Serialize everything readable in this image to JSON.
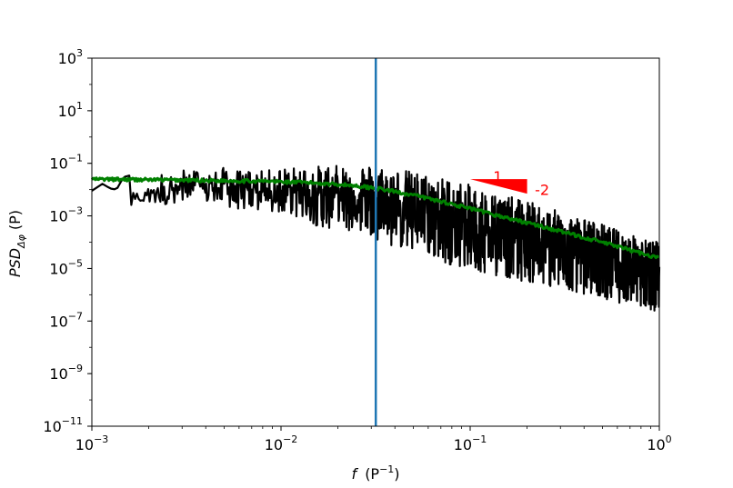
{
  "chart_data": {
    "type": "line",
    "xscale": "log",
    "yscale": "log",
    "xlim": [
      0.001,
      1
    ],
    "ylim": [
      1e-11,
      1000
    ],
    "grid": false,
    "xlabel": {
      "main": "f",
      "unit": "(P",
      "sup": "−1",
      "close": ")"
    },
    "ylabel": {
      "main": "PSD",
      "sub": "Δφ",
      "unit": "(P)"
    },
    "xticks": [
      {
        "value": 0.001,
        "base": "10",
        "exp": "−3"
      },
      {
        "value": 0.01,
        "base": "10",
        "exp": "−2"
      },
      {
        "value": 0.1,
        "base": "10",
        "exp": "−1"
      },
      {
        "value": 1,
        "base": "10",
        "exp": "0"
      }
    ],
    "yticks": [
      {
        "value": 1e-11,
        "base": "10",
        "exp": "−11"
      },
      {
        "value": 1e-09,
        "base": "10",
        "exp": "−9"
      },
      {
        "value": 1e-07,
        "base": "10",
        "exp": "−7"
      },
      {
        "value": 1e-05,
        "base": "10",
        "exp": "−5"
      },
      {
        "value": 0.001,
        "base": "10",
        "exp": "−3"
      },
      {
        "value": 0.1,
        "base": "10",
        "exp": "−1"
      },
      {
        "value": 10,
        "base": "10",
        "exp": "1"
      },
      {
        "value": 1000,
        "base": "10",
        "exp": "3"
      }
    ],
    "series": [
      {
        "color": "#000000",
        "kind": "noisy-spectrum",
        "x": [
          0.001,
          0.00107,
          0.00115,
          0.00125,
          0.00135,
          0.00147,
          0.0016,
          0.00172,
          0.00185,
          0.002,
          0.0022,
          0.0024,
          0.0026,
          0.0028,
          0.003,
          0.0033,
          0.0036,
          0.004,
          0.0045,
          0.005,
          0.0056,
          0.0063,
          0.007,
          0.008,
          0.009,
          0.01,
          0.012,
          0.014,
          0.016,
          0.018,
          0.02,
          0.023,
          0.026,
          0.03,
          0.035,
          0.04,
          0.05,
          0.06,
          0.07,
          0.08,
          0.1,
          0.12,
          0.15,
          0.2,
          0.25,
          0.3,
          0.4,
          0.5,
          0.6,
          0.7,
          0.8,
          0.9,
          1.0
        ],
        "y_upper": [
          0.009,
          0.02,
          0.016,
          0.011,
          0.01,
          0.03,
          0.035,
          0.008,
          0.004,
          0.025,
          0.015,
          0.07,
          0.03,
          0.05,
          0.06,
          0.05,
          0.06,
          0.06,
          0.055,
          0.07,
          0.06,
          0.05,
          0.06,
          0.05,
          0.06,
          0.07,
          0.07,
          0.08,
          0.08,
          0.09,
          0.08,
          0.09,
          0.1,
          0.09,
          0.08,
          0.07,
          0.05,
          0.04,
          0.03,
          0.025,
          0.015,
          0.01,
          0.006,
          0.004,
          0.002,
          0.0015,
          0.0008,
          0.0005,
          0.0003,
          0.0002,
          0.00015,
          0.00012,
          0.0001
        ],
        "y_lower": [
          0.009,
          0.02,
          0.016,
          0.011,
          0.01,
          0.002,
          0.0006,
          0.002,
          0.004,
          0.001,
          0.002,
          0.0008,
          0.002,
          0.0015,
          0.001,
          0.0012,
          0.001,
          0.0015,
          0.0008,
          0.001,
          0.0008,
          0.0007,
          0.0006,
          0.0005,
          0.0004,
          0.0005,
          0.0003,
          0.00015,
          0.0001,
          8e-05,
          0.0002,
          5e-05,
          7e-05,
          3e-05,
          2e-05,
          1e-05,
          8e-06,
          5e-06,
          3e-06,
          2e-06,
          1.5e-06,
          1e-06,
          8e-07,
          5e-07,
          4e-07,
          3e-07,
          2e-07,
          1.5e-07,
          1e-07,
          1e-07,
          8e-08,
          6e-08,
          4e-08
        ]
      },
      {
        "color": "#008000",
        "kind": "smooth-fit",
        "x": [
          0.001,
          0.002,
          0.003,
          0.005,
          0.008,
          0.01,
          0.015,
          0.02,
          0.025,
          0.03,
          0.04,
          0.05,
          0.07,
          0.1,
          0.15,
          0.2,
          0.3,
          0.5,
          0.7,
          1.0
        ],
        "y": [
          0.025,
          0.024,
          0.023,
          0.022,
          0.021,
          0.02,
          0.018,
          0.016,
          0.014,
          0.012,
          0.0085,
          0.0062,
          0.0036,
          0.0019,
          0.0009,
          0.00055,
          0.00026,
          0.0001,
          5e-05,
          2.5e-05
        ]
      }
    ],
    "vline": {
      "x": 0.0317,
      "color": "#1f77b4"
    },
    "annotation": {
      "color": "#ff0000",
      "triangle": [
        [
          0.1,
          0.025
        ],
        [
          0.2,
          0.025
        ],
        [
          0.2,
          0.007
        ]
      ],
      "label_top": {
        "text": "1",
        "x": 0.14,
        "y": 0.06
      },
      "label_right": {
        "text": "-2",
        "x": 0.24,
        "y": 0.0095
      }
    }
  }
}
